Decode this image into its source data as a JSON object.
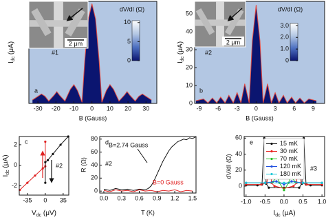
{
  "chart_data": [
    {
      "type": "area",
      "panel_label": "a",
      "sample": "#1",
      "xlabel": "B (Gauss)",
      "ylabel": [
        {
          "text": "I"
        },
        {
          "text": "dc",
          "sub": true
        },
        {
          "text": " (μA)"
        }
      ],
      "xlim": [
        -35,
        36
      ],
      "ylim": [
        0,
        4.35
      ],
      "xticks": [
        -30,
        -20,
        -10,
        0,
        10,
        20,
        30
      ],
      "background": "#b3c7e3",
      "series": [
        {
          "color": "#0b1570",
          "line_color": "#e6493e",
          "x": [
            -33,
            -30,
            -28,
            -26,
            -24,
            -21,
            -19.5,
            -18,
            -15,
            -12,
            -10,
            -8,
            -5.5,
            -4,
            -2,
            0,
            2,
            4,
            5.5,
            8,
            10,
            12,
            15,
            18,
            19.5,
            21,
            24,
            26,
            28,
            30,
            33
          ],
          "values": [
            0.15,
            0.3,
            0.4,
            0.3,
            0.1,
            0.35,
            0.5,
            0.35,
            0.1,
            0.6,
            0.8,
            0.55,
            0.05,
            1.8,
            3.6,
            4.25,
            3.6,
            1.8,
            0.05,
            0.55,
            0.8,
            0.6,
            0.1,
            0.35,
            0.5,
            0.35,
            0.1,
            0.3,
            0.4,
            0.3,
            0.15
          ]
        }
      ],
      "colorbar": {
        "label": "dV/dI (Ω)",
        "lim": [
          0,
          10.5
        ],
        "ticks": [
          0,
          5,
          10
        ],
        "colors": [
          "#0b1570",
          "#4c6fc0",
          "#b3c7e3",
          "#ffffff"
        ]
      },
      "inset": {
        "scale_bar": "2 μm"
      }
    },
    {
      "type": "area",
      "panel_label": "b",
      "sample": "#2",
      "xlabel": "B (Gauss)",
      "ylabel": [
        {
          "text": "I"
        },
        {
          "text": "dc",
          "sub": true
        },
        {
          "text": " (μA)"
        }
      ],
      "xlim": [
        -9.7,
        10.8
      ],
      "ylim": [
        0,
        57
      ],
      "xticks": [
        -9,
        -6,
        -3,
        0,
        3,
        6,
        9
      ],
      "yticks": [
        0,
        10,
        20,
        30,
        40,
        50
      ],
      "background": "#b3c7e3",
      "series": [
        {
          "color": "#0b1570",
          "line_color": "#e6493e",
          "x": [
            -9.5,
            -8.3,
            -7.6,
            -6.9,
            -6.2,
            -5.6,
            -4.9,
            -4.3,
            -3.6,
            -3,
            -2.4,
            -1.8,
            -1.1,
            -0.6,
            0,
            0.6,
            1.1,
            1.8,
            2.4,
            3,
            3.6,
            4.3,
            4.9,
            5.6,
            6.2,
            6.9,
            7.6,
            8.3,
            9.5
          ],
          "values": [
            1.5,
            2.5,
            0.3,
            3,
            0.3,
            3.5,
            0.3,
            4.5,
            0.3,
            6,
            0.3,
            11,
            0.3,
            35,
            55,
            35,
            0.3,
            11,
            0.3,
            6,
            0.3,
            4.5,
            0.3,
            3.5,
            0.3,
            3,
            0.3,
            2.5,
            1.5
          ]
        }
      ],
      "colorbar": {
        "label": "dV/dI (Ω)",
        "lim": [
          0,
          3.2
        ],
        "ticks": [
          0,
          {
            "value": 1,
            "label": "1.0"
          },
          {
            "value": 2,
            "label": "2.0"
          },
          {
            "value": 3,
            "label": "3.0"
          }
        ],
        "colors": [
          "#0b1570",
          "#4c6fc0",
          "#b3c7e3",
          "#ffffff"
        ]
      },
      "inset": {
        "scale_bar": "2 μm"
      }
    },
    {
      "type": "line",
      "panel_label": "c",
      "sample": "#2",
      "xlabel": [
        {
          "text": "V"
        },
        {
          "text": "dc",
          "sub": true
        },
        {
          "text": " (μV)"
        }
      ],
      "ylabel": [
        {
          "text": "I"
        },
        {
          "text": "dc",
          "sub": true
        },
        {
          "text": " (μA)"
        }
      ],
      "xlim": [
        -51,
        46
      ],
      "ylim": [
        -2.9,
        2.8
      ],
      "xticks": [
        -35,
        0,
        35
      ],
      "yticks": [
        -2,
        0,
        2
      ],
      "series": [
        {
          "color": "#e02020",
          "marker": true,
          "x": [
            -50,
            -35,
            -20,
            -5,
            0,
            0
          ],
          "values": [
            -2.4,
            -1.7,
            -1.0,
            -0.3,
            -0.1,
            2.3
          ]
        },
        {
          "color": "#111111",
          "marker": true,
          "x": [
            45,
            30,
            15,
            5,
            0,
            0
          ],
          "values": [
            2.8,
            2.0,
            1.1,
            0.5,
            0.3,
            -1.7
          ]
        }
      ]
    },
    {
      "type": "line",
      "panel_label": "d",
      "sample": "#2",
      "xlabel": "T (K)",
      "ylabel": "R (Ω)",
      "xlim": [
        -0.07,
        1.56
      ],
      "ylim": [
        -3,
        84
      ],
      "xticks": [
        {
          "value": 0,
          "label": "0.0"
        },
        0.3,
        0.6,
        0.9,
        1.2,
        1.5
      ],
      "yticks": [
        0,
        20,
        40,
        60,
        80
      ],
      "annotations": [
        {
          "text": "B=2.74 Gauss",
          "color": "#111111"
        },
        {
          "text": "B=0 Gauss",
          "color": "#e02020"
        }
      ],
      "series": [
        {
          "color": "#111111",
          "x": [
            0,
            0.1,
            0.2,
            0.3,
            0.4,
            0.5,
            0.6,
            0.7,
            0.75,
            0.8,
            0.85,
            0.9,
            0.95,
            1.0,
            1.05,
            1.1,
            1.15,
            1.2,
            1.25,
            1.3,
            1.35,
            1.4,
            1.45,
            1.5,
            1.55
          ],
          "values": [
            3,
            1,
            4,
            2,
            3,
            1,
            3,
            2,
            4,
            8,
            16,
            26,
            36,
            46,
            54,
            62,
            68,
            72,
            76,
            78,
            80,
            79,
            82,
            81,
            83
          ]
        },
        {
          "color": "#e02020",
          "x": [
            0,
            0.1,
            0.2,
            0.3,
            0.4,
            0.5,
            0.6,
            0.7,
            0.8,
            0.9,
            1.0,
            1.1,
            1.2,
            1.3,
            1.4,
            1.5
          ],
          "values": [
            1,
            -1,
            2,
            0,
            1,
            -1,
            2,
            0,
            1,
            -1,
            1,
            0,
            2,
            -1,
            1,
            0
          ]
        }
      ]
    },
    {
      "type": "line",
      "panel_label": "e",
      "sample": "#3",
      "xlabel": [
        {
          "text": "I"
        },
        {
          "text": "dc",
          "sub": true
        },
        {
          "text": " (μA)"
        }
      ],
      "ylabel": "dV/dI (Ω)",
      "xlim": [
        -1.05,
        1.07
      ],
      "ylim": [
        -13,
        62
      ],
      "xticks": [
        {
          "value": -1,
          "label": "-1.0"
        },
        -0.5,
        {
          "value": 0,
          "label": "0.0"
        },
        0.5,
        {
          "value": 1,
          "label": "1.0"
        }
      ],
      "yticks": [
        0,
        20,
        40,
        60
      ],
      "legend": "upper-center",
      "series": [
        {
          "name": "15 mK",
          "color": "#111111",
          "marker": true,
          "x": [
            -1,
            -0.7,
            -0.58,
            -0.52,
            -0.47,
            -0.4,
            0,
            0.4,
            0.47,
            0.52,
            0.58,
            0.7,
            1
          ],
          "values": [
            1,
            1,
            2,
            60,
            3,
            -2,
            -2,
            -2,
            3,
            60,
            2,
            1,
            1
          ]
        },
        {
          "name": "30 mK",
          "color": "#e8201c",
          "marker": true,
          "x": [
            -1,
            -0.6,
            -0.45,
            -0.38,
            -0.33,
            -0.25,
            0,
            0.25,
            0.33,
            0.38,
            0.45,
            0.6,
            1
          ],
          "values": [
            2,
            2,
            4,
            36,
            4,
            0,
            -3,
            0,
            4,
            36,
            4,
            2,
            2
          ]
        },
        {
          "name": "70 mK",
          "color": "#29c129",
          "marker": true,
          "x": [
            -1,
            -0.5,
            -0.3,
            -0.18,
            -0.12,
            0,
            0.12,
            0.18,
            0.3,
            0.5,
            1
          ],
          "values": [
            4,
            4,
            5,
            12,
            4,
            -5,
            4,
            12,
            5,
            4,
            4
          ]
        },
        {
          "name": "120 mK",
          "color": "#2050e0",
          "marker": true,
          "x": [
            -1,
            -0.5,
            -0.2,
            0,
            0.2,
            0.5,
            1
          ],
          "values": [
            4,
            4,
            6,
            2,
            6,
            4,
            4
          ]
        },
        {
          "name": "180 mK",
          "color": "#21c8d8",
          "marker": true,
          "x": [
            -1,
            -0.5,
            0,
            0.5,
            1
          ],
          "values": [
            4,
            4,
            4,
            4,
            4
          ]
        }
      ]
    }
  ]
}
